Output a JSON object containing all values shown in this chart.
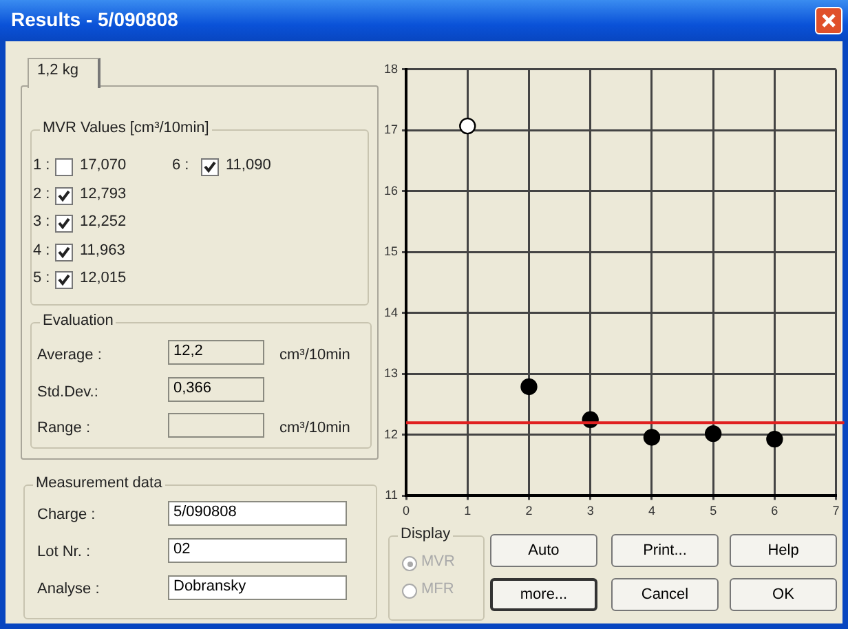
{
  "chart_data": {
    "type": "scatter",
    "title": "Results - 5/090808",
    "series": [
      {
        "x": [
          1
        ],
        "values": [
          17.07
        ],
        "color": "#ffffff"
      },
      {
        "x": [
          2,
          3,
          4,
          5,
          6
        ],
        "values": [
          12.79,
          12.25,
          11.96,
          12.02,
          11.93
        ],
        "color": "#000000"
      }
    ],
    "xlim": [
      0,
      7
    ],
    "xticks": [
      0,
      1,
      2,
      3,
      4,
      5,
      6,
      7
    ],
    "ylim": [
      11,
      18
    ],
    "yticks": [
      11,
      12,
      13,
      14,
      15,
      16,
      17,
      18
    ],
    "grid": true,
    "marker": "circle",
    "ref_lines": [
      {
        "axis": "y",
        "value": 12.2,
        "color": "#e02020"
      }
    ],
    "annotations": [
      "1,2 kg",
      "MVR Values [cm³/10min]",
      "1 :",
      "17,070",
      "2 :",
      "12,793",
      "3 :",
      "12,252",
      "4 :",
      "11,963",
      "5 :",
      "12,015",
      "6 :",
      "11,090",
      "Evaluation",
      "Average :",
      "12,2",
      "cm³/10min",
      "Std.Dev.:",
      "0,366",
      "Range :",
      "cm³/10min",
      "Measurement data",
      "Charge :",
      "5/090808",
      "Lot Nr. :",
      "02",
      "Analyse :",
      "Dobransky",
      "Display",
      "MVR",
      "MFR",
      "Auto",
      "Print...",
      "Help",
      "more...",
      "Cancel",
      "OK"
    ]
  }
}
